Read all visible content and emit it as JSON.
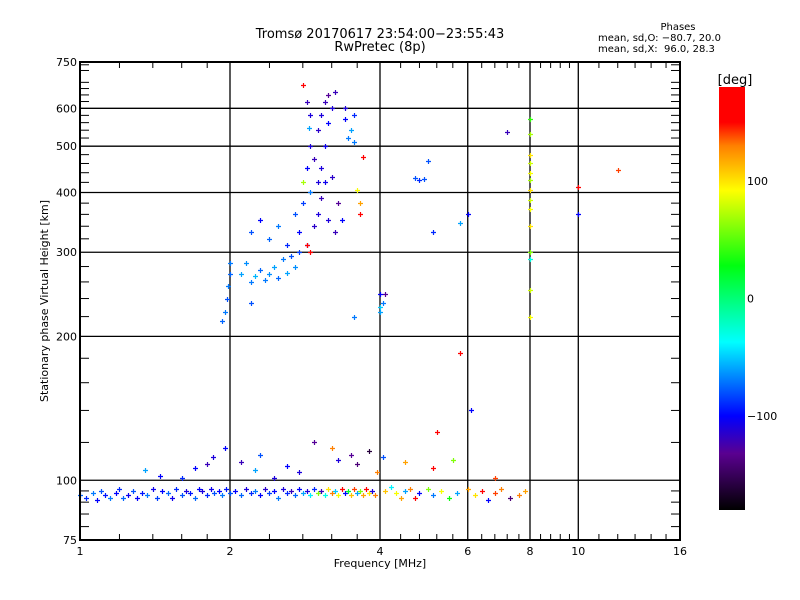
{
  "chart_data": {
    "type": "scatter",
    "title": "Tromsø 20170617 23:54:00−23:55:43",
    "subtitle": "RwPretec (8p)",
    "xlabel": "Frequency [MHz]",
    "ylabel": "Stationary phase Virtual Height [km]",
    "xscale": "log",
    "yscale": "log",
    "xlim": [
      1,
      16
    ],
    "ylim": [
      75,
      750
    ],
    "xticks": [
      1,
      2,
      4,
      6,
      8,
      10,
      16
    ],
    "xtick_labels": [
      "1",
      "2",
      "4",
      "6",
      "8",
      "10",
      "16"
    ],
    "yticks": [
      75,
      100,
      200,
      300,
      400,
      500,
      600,
      750
    ],
    "ytick_labels": [
      "75",
      "100",
      "200",
      "300",
      "400",
      "500",
      "600",
      "750"
    ],
    "xgrid": [
      2,
      4,
      6,
      8,
      10
    ],
    "ygrid": [
      100,
      200,
      300,
      400,
      500,
      600
    ],
    "grid": true,
    "colorbar": {
      "label": "[deg]",
      "range": [
        -180,
        180
      ],
      "ticks": [
        100,
        0,
        -100
      ],
      "tick_labels": [
        "100",
        "0",
        "−100"
      ],
      "stops": [
        [
          -180,
          "#000000"
        ],
        [
          -132,
          "#5a0090"
        ],
        [
          -100,
          "#0000ff"
        ],
        [
          -37,
          "#00ffff"
        ],
        [
          28,
          "#00ff10"
        ],
        [
          92,
          "#ffff00"
        ],
        [
          130,
          "#ff8000"
        ],
        [
          150,
          "#ff0000"
        ],
        [
          180,
          "#ff0000"
        ]
      ]
    },
    "phase_stats": {
      "header": "Phases",
      "o_line": "mean, sd,O: −80.7, 20.0",
      "x_line": "mean, sd,X:  96.0, 28.3"
    },
    "point_fields": [
      "frequency_MHz",
      "height_km",
      "phase_deg"
    ],
    "points": [
      [
        1.0,
        93,
        -75
      ],
      [
        1.03,
        92,
        -90
      ],
      [
        1.06,
        94,
        -70
      ],
      [
        1.08,
        91,
        -100
      ],
      [
        1.1,
        95,
        -80
      ],
      [
        1.12,
        93,
        -95
      ],
      [
        1.15,
        92,
        -70
      ],
      [
        1.18,
        94,
        -100
      ],
      [
        1.2,
        96,
        -90
      ],
      [
        1.22,
        92,
        -75
      ],
      [
        1.25,
        93,
        -105
      ],
      [
        1.28,
        95,
        -80
      ],
      [
        1.3,
        92,
        -100
      ],
      [
        1.33,
        94,
        -95
      ],
      [
        1.36,
        93,
        -70
      ],
      [
        1.4,
        96,
        -105
      ],
      [
        1.43,
        92,
        -85
      ],
      [
        1.46,
        95,
        -100
      ],
      [
        1.5,
        94,
        -75
      ],
      [
        1.53,
        92,
        -105
      ],
      [
        1.56,
        96,
        -90
      ],
      [
        1.6,
        93,
        -80
      ],
      [
        1.63,
        95,
        -110
      ],
      [
        1.66,
        94,
        -95
      ],
      [
        1.7,
        92,
        -75
      ],
      [
        1.73,
        96,
        -100
      ],
      [
        1.76,
        95,
        -110
      ],
      [
        1.8,
        93,
        -90
      ],
      [
        1.83,
        96,
        -105
      ],
      [
        1.86,
        94,
        -80
      ],
      [
        1.9,
        95,
        -100
      ],
      [
        1.93,
        93,
        -70
      ],
      [
        1.96,
        96,
        -95
      ],
      [
        2.0,
        94,
        -80
      ],
      [
        2.05,
        95,
        -100
      ],
      [
        2.1,
        93,
        -75
      ],
      [
        2.15,
        96,
        -110
      ],
      [
        2.2,
        94,
        -90
      ],
      [
        2.25,
        95,
        -70
      ],
      [
        2.3,
        93,
        -100
      ],
      [
        2.35,
        96,
        -115
      ],
      [
        2.4,
        94,
        -85
      ],
      [
        2.45,
        95,
        -100
      ],
      [
        2.5,
        92,
        -70
      ],
      [
        2.55,
        96,
        -110
      ],
      [
        2.6,
        94,
        -90
      ],
      [
        2.65,
        95,
        -120
      ],
      [
        2.7,
        93,
        -75
      ],
      [
        2.75,
        96,
        -100
      ],
      [
        2.8,
        94,
        -60
      ],
      [
        2.85,
        95,
        -110
      ],
      [
        2.9,
        93,
        -40
      ],
      [
        2.95,
        96,
        -90
      ],
      [
        3.0,
        94,
        60
      ],
      [
        3.05,
        95,
        -120
      ],
      [
        3.1,
        93,
        -30
      ],
      [
        3.15,
        96,
        100
      ],
      [
        3.2,
        94,
        130
      ],
      [
        3.25,
        95,
        -50
      ],
      [
        3.3,
        93,
        90
      ],
      [
        3.35,
        96,
        150
      ],
      [
        3.4,
        94,
        -100
      ],
      [
        3.45,
        95,
        20
      ],
      [
        3.5,
        93,
        110
      ],
      [
        3.55,
        96,
        140
      ],
      [
        3.6,
        94,
        -60
      ],
      [
        3.65,
        95,
        60
      ],
      [
        3.7,
        93,
        120
      ],
      [
        3.75,
        96,
        170
      ],
      [
        3.8,
        94,
        100
      ],
      [
        3.85,
        95,
        -110
      ],
      [
        3.9,
        93,
        130
      ],
      [
        4.1,
        95,
        110
      ],
      [
        4.2,
        97,
        -40
      ],
      [
        4.3,
        94,
        90
      ],
      [
        4.4,
        92,
        120
      ],
      [
        4.5,
        95,
        -60
      ],
      [
        4.6,
        96,
        130
      ],
      [
        4.7,
        92,
        150
      ],
      [
        4.8,
        94,
        -100
      ],
      [
        5.0,
        96,
        60
      ],
      [
        5.1,
        93,
        -70
      ],
      [
        5.3,
        95,
        90
      ],
      [
        5.5,
        92,
        30
      ],
      [
        5.7,
        94,
        -60
      ],
      [
        6.0,
        96,
        120
      ],
      [
        6.2,
        93,
        100
      ],
      [
        6.4,
        95,
        150
      ],
      [
        6.6,
        91,
        -100
      ],
      [
        6.8,
        94,
        140
      ],
      [
        7.0,
        96,
        130
      ],
      [
        7.3,
        92,
        -140
      ],
      [
        7.6,
        93,
        130
      ],
      [
        7.8,
        95,
        120
      ],
      [
        1.35,
        105,
        -60
      ],
      [
        1.45,
        102,
        -100
      ],
      [
        1.6,
        101,
        -90
      ],
      [
        1.7,
        106,
        -100
      ],
      [
        1.8,
        108,
        -120
      ],
      [
        1.85,
        112,
        -110
      ],
      [
        1.95,
        117,
        -100
      ],
      [
        2.1,
        109,
        -120
      ],
      [
        2.25,
        105,
        -60
      ],
      [
        2.3,
        113,
        -80
      ],
      [
        2.45,
        101,
        -110
      ],
      [
        2.6,
        107,
        -100
      ],
      [
        2.75,
        104,
        -110
      ],
      [
        2.95,
        120,
        -130
      ],
      [
        3.2,
        117,
        130
      ],
      [
        3.3,
        110,
        -110
      ],
      [
        3.5,
        113,
        -130
      ],
      [
        3.6,
        108,
        -140
      ],
      [
        3.8,
        115,
        -160
      ],
      [
        3.95,
        104,
        130
      ],
      [
        4.05,
        112,
        -80
      ],
      [
        4.5,
        109,
        120
      ],
      [
        5.1,
        106,
        160
      ],
      [
        5.2,
        126,
        150
      ],
      [
        5.6,
        110,
        60
      ],
      [
        6.8,
        101,
        140
      ],
      [
        1.93,
        215,
        -75
      ],
      [
        1.95,
        225,
        -70
      ],
      [
        1.97,
        240,
        -80
      ],
      [
        1.98,
        255,
        -70
      ],
      [
        2.0,
        270,
        -75
      ],
      [
        2.0,
        285,
        -70
      ],
      [
        2.1,
        270,
        -60
      ],
      [
        2.15,
        285,
        -65
      ],
      [
        2.2,
        260,
        -70
      ],
      [
        2.25,
        268,
        -55
      ],
      [
        2.3,
        275,
        -75
      ],
      [
        2.35,
        262,
        -70
      ],
      [
        2.4,
        270,
        -65
      ],
      [
        2.45,
        280,
        -60
      ],
      [
        2.5,
        265,
        -75
      ],
      [
        2.55,
        290,
        -70
      ],
      [
        2.6,
        272,
        -60
      ],
      [
        2.65,
        295,
        -80
      ],
      [
        2.7,
        280,
        -65
      ],
      [
        2.75,
        300,
        -85
      ],
      [
        2.2,
        330,
        -80
      ],
      [
        2.3,
        350,
        -100
      ],
      [
        2.4,
        320,
        -75
      ],
      [
        2.5,
        340,
        -70
      ],
      [
        2.6,
        310,
        -90
      ],
      [
        2.7,
        360,
        -80
      ],
      [
        2.75,
        330,
        -100
      ],
      [
        2.8,
        380,
        -85
      ],
      [
        2.85,
        310,
        -110
      ],
      [
        2.9,
        400,
        -70
      ],
      [
        2.95,
        340,
        -115
      ],
      [
        3.0,
        420,
        -110
      ],
      [
        2.85,
        450,
        -100
      ],
      [
        2.9,
        500,
        -110
      ],
      [
        2.95,
        470,
        -120
      ],
      [
        3.0,
        540,
        -115
      ],
      [
        3.05,
        580,
        -110
      ],
      [
        3.1,
        620,
        -120
      ],
      [
        3.05,
        450,
        -110
      ],
      [
        3.1,
        500,
        -105
      ],
      [
        3.15,
        560,
        -100
      ],
      [
        3.15,
        640,
        -130
      ],
      [
        3.2,
        600,
        -110
      ],
      [
        3.25,
        650,
        -120
      ],
      [
        3.0,
        360,
        -110
      ],
      [
        3.05,
        390,
        -120
      ],
      [
        3.1,
        420,
        -105
      ],
      [
        3.2,
        430,
        -115
      ],
      [
        3.3,
        380,
        -130
      ],
      [
        3.15,
        350,
        -110
      ],
      [
        3.25,
        330,
        -120
      ],
      [
        3.35,
        350,
        -100
      ],
      [
        3.4,
        600,
        -110
      ],
      [
        3.45,
        520,
        -70
      ],
      [
        3.5,
        540,
        -60
      ],
      [
        3.55,
        510,
        -70
      ],
      [
        3.4,
        570,
        -100
      ],
      [
        2.85,
        620,
        -120
      ],
      [
        2.9,
        580,
        -110
      ],
      [
        2.8,
        670,
        150
      ],
      [
        2.88,
        545,
        -60
      ],
      [
        3.55,
        580,
        -90
      ],
      [
        3.65,
        360,
        150
      ],
      [
        3.65,
        380,
        120
      ],
      [
        3.7,
        475,
        150
      ],
      [
        3.6,
        405,
        90
      ],
      [
        2.9,
        300,
        150
      ],
      [
        2.85,
        310,
        170
      ],
      [
        2.8,
        420,
        70
      ],
      [
        2.2,
        235,
        -80
      ],
      [
        3.55,
        220,
        -70
      ],
      [
        4.0,
        225,
        -60
      ],
      [
        4.05,
        235,
        -70
      ],
      [
        4.0,
        230,
        -50
      ],
      [
        4.1,
        245,
        -130
      ],
      [
        4.0,
        245,
        -100
      ],
      [
        4.7,
        428,
        -80
      ],
      [
        4.8,
        425,
        -90
      ],
      [
        4.9,
        427,
        -80
      ],
      [
        5.0,
        465,
        -80
      ],
      [
        5.1,
        330,
        -90
      ],
      [
        5.8,
        345,
        -60
      ],
      [
        5.8,
        185,
        150
      ],
      [
        6.1,
        140,
        -100
      ],
      [
        6.0,
        360,
        -100
      ],
      [
        7.2,
        535,
        -120
      ],
      [
        10.0,
        360,
        -100
      ],
      [
        10.0,
        410,
        170
      ],
      [
        12.0,
        445,
        140
      ],
      [
        8.0,
        220,
        90
      ],
      [
        8.0,
        250,
        80
      ],
      [
        8.0,
        290,
        -30
      ],
      [
        8.0,
        300,
        60
      ],
      [
        8.0,
        340,
        100
      ],
      [
        8.0,
        370,
        90
      ],
      [
        8.0,
        385,
        80
      ],
      [
        8.0,
        405,
        100
      ],
      [
        8.0,
        425,
        70
      ],
      [
        8.0,
        440,
        90
      ],
      [
        8.0,
        460,
        80
      ],
      [
        8.0,
        480,
        100
      ],
      [
        8.0,
        530,
        70
      ],
      [
        8.0,
        570,
        40
      ]
    ]
  }
}
